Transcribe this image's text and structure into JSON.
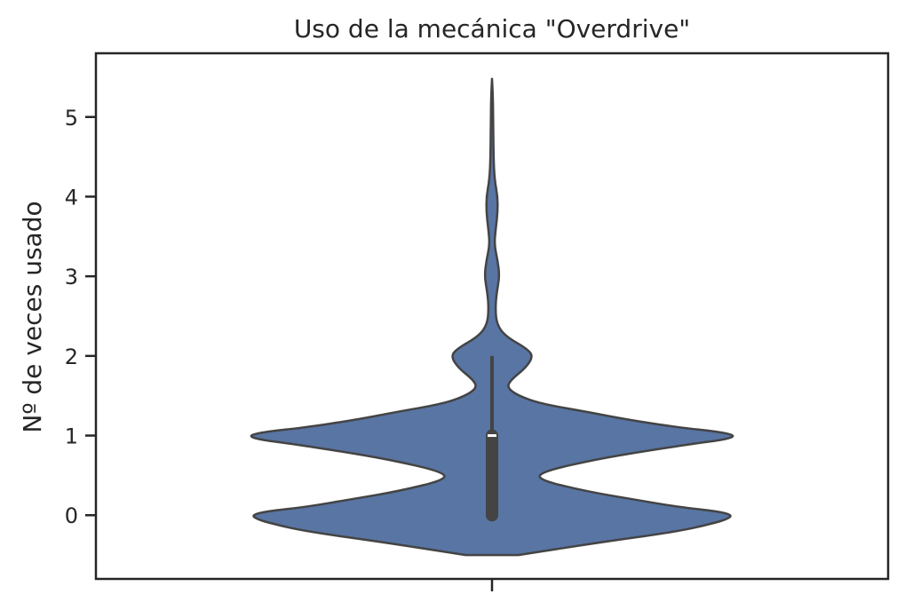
{
  "chart_data": {
    "type": "violin",
    "title": "Uso de la mecánica \"Overdrive\"",
    "xlabel": "",
    "ylabel": "Nº de veces usado",
    "ylim": [
      -0.8,
      5.8
    ],
    "yticks": [
      0,
      1,
      2,
      3,
      4,
      5
    ],
    "grid": false,
    "legend": "none",
    "series": [
      {
        "density_profile": [
          [
            -0.5,
            0.14
          ],
          [
            -0.35,
            0.55
          ],
          [
            -0.2,
            1.0
          ],
          [
            -0.1,
            1.18
          ],
          [
            -0.05,
            1.25
          ],
          [
            0.0,
            1.28
          ],
          [
            0.05,
            1.2
          ],
          [
            0.1,
            1.0
          ],
          [
            0.2,
            0.75
          ],
          [
            0.3,
            0.5
          ],
          [
            0.45,
            0.24
          ],
          [
            0.55,
            0.27
          ],
          [
            0.7,
            0.55
          ],
          [
            0.8,
            0.8
          ],
          [
            0.9,
            1.08
          ],
          [
            0.95,
            1.24
          ],
          [
            1.0,
            1.3
          ],
          [
            1.05,
            1.2
          ],
          [
            1.1,
            1.0
          ],
          [
            1.2,
            0.72
          ],
          [
            1.3,
            0.5
          ],
          [
            1.4,
            0.26
          ],
          [
            1.5,
            0.14
          ],
          [
            1.6,
            0.08
          ],
          [
            1.7,
            0.1
          ],
          [
            1.85,
            0.18
          ],
          [
            2.0,
            0.22
          ],
          [
            2.1,
            0.18
          ],
          [
            2.25,
            0.07
          ],
          [
            2.4,
            0.025
          ],
          [
            2.6,
            0.018
          ],
          [
            2.8,
            0.025
          ],
          [
            3.0,
            0.04
          ],
          [
            3.2,
            0.03
          ],
          [
            3.4,
            0.012
          ],
          [
            3.6,
            0.02
          ],
          [
            3.8,
            0.03
          ],
          [
            4.0,
            0.03
          ],
          [
            4.2,
            0.014
          ],
          [
            4.5,
            0.008
          ],
          [
            5.0,
            0.006
          ],
          [
            5.3,
            0.004
          ],
          [
            5.48,
            0.0
          ]
        ],
        "q1": 0,
        "median": 1,
        "q3": 1,
        "whisker_low": 0,
        "whisker_high": 2,
        "color": "#5875a4",
        "edge_color": "#444444"
      }
    ]
  }
}
